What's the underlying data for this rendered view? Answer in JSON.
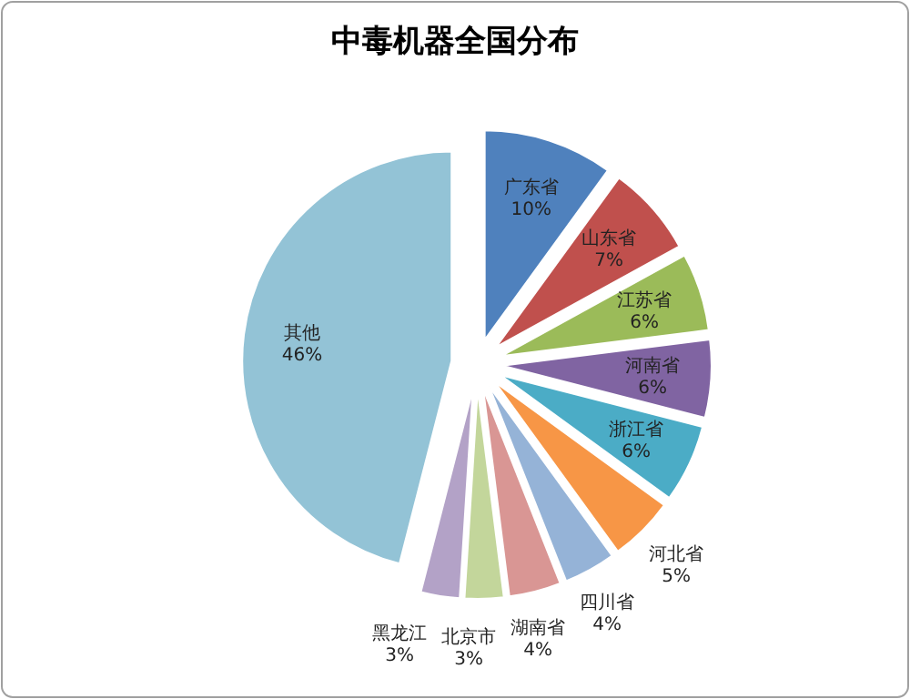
{
  "chart_data": {
    "type": "pie",
    "title": "中毒机器全国分布",
    "categories": [
      "广东省",
      "山东省",
      "江苏省",
      "河南省",
      "浙江省",
      "河北省",
      "四川省",
      "湖南省",
      "北京市",
      "黑龙江",
      "其他"
    ],
    "values": [
      10,
      7,
      6,
      6,
      6,
      5,
      4,
      4,
      3,
      3,
      46
    ],
    "colors": [
      "#4f81bd",
      "#c0504d",
      "#9bbb59",
      "#8064a2",
      "#4bacc6",
      "#f79646",
      "#95b3d7",
      "#d99694",
      "#c3d69b",
      "#b3a2c7",
      "#93c3d6"
    ],
    "value_labels": [
      "10%",
      "7%",
      "6%",
      "6%",
      "6%",
      "5%",
      "4%",
      "4%",
      "3%",
      "3%",
      "46%"
    ],
    "legend": false
  }
}
